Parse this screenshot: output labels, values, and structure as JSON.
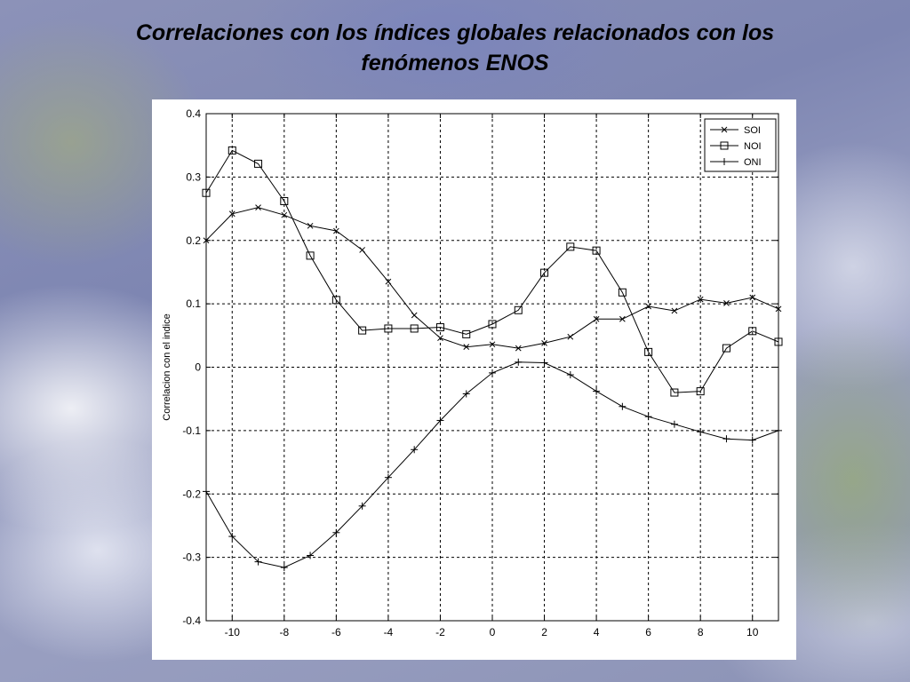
{
  "slide": {
    "title": "Correlaciones con los índices globales relacionados con los\nfenómenos ENOS"
  },
  "chart_data": {
    "type": "line",
    "title": "",
    "xlabel": "",
    "ylabel": "Correlacion con el indice",
    "xlim": [
      -11,
      11
    ],
    "ylim": [
      -0.4,
      0.4
    ],
    "xticks": [
      -10,
      -8,
      -6,
      -4,
      -2,
      0,
      2,
      4,
      6,
      8,
      10
    ],
    "xtick_labels": [
      "-10",
      "-8",
      "-6",
      "-4",
      "-2",
      "0",
      "2",
      "4",
      "6",
      "8",
      "10"
    ],
    "yticks": [
      -0.4,
      -0.3,
      -0.2,
      -0.1,
      0,
      0.1,
      0.2,
      0.3,
      0.4
    ],
    "ytick_labels": [
      "-0.4",
      "-0.3",
      "-0.2",
      "-0.1",
      "0",
      "0.1",
      "0.2",
      "0.3",
      "0.4"
    ],
    "grid": true,
    "grid_style": "dashed",
    "legend_position": "top-right",
    "x": [
      -11,
      -10,
      -9,
      -8,
      -7,
      -6,
      -5,
      -4,
      -3,
      -2,
      -1,
      0,
      1,
      2,
      3,
      4,
      5,
      6,
      7,
      8,
      9,
      10,
      11
    ],
    "series": [
      {
        "name": "SOI",
        "marker": "x",
        "values": [
          0.2,
          0.242,
          0.252,
          0.24,
          0.223,
          0.215,
          0.185,
          0.135,
          0.082,
          0.046,
          0.032,
          0.036,
          0.03,
          0.038,
          0.048,
          0.076,
          0.076,
          0.096,
          0.089,
          0.107,
          0.101,
          0.11,
          0.092
        ]
      },
      {
        "name": "NOI",
        "marker": "square",
        "values": [
          0.275,
          0.342,
          0.321,
          0.262,
          0.176,
          0.106,
          0.058,
          0.061,
          0.061,
          0.063,
          0.052,
          0.068,
          0.09,
          0.149,
          0.19,
          0.184,
          0.118,
          0.024,
          -0.04,
          -0.038,
          0.03,
          0.057,
          0.04
        ]
      },
      {
        "name": "ONI",
        "marker": "plus",
        "values": [
          -0.196,
          -0.267,
          -0.307,
          -0.316,
          -0.297,
          -0.261,
          -0.219,
          -0.174,
          -0.13,
          -0.084,
          -0.042,
          -0.009,
          0.008,
          0.007,
          -0.012,
          -0.038,
          -0.062,
          -0.078,
          -0.09,
          -0.102,
          -0.113,
          -0.115,
          -0.1
        ]
      }
    ]
  }
}
